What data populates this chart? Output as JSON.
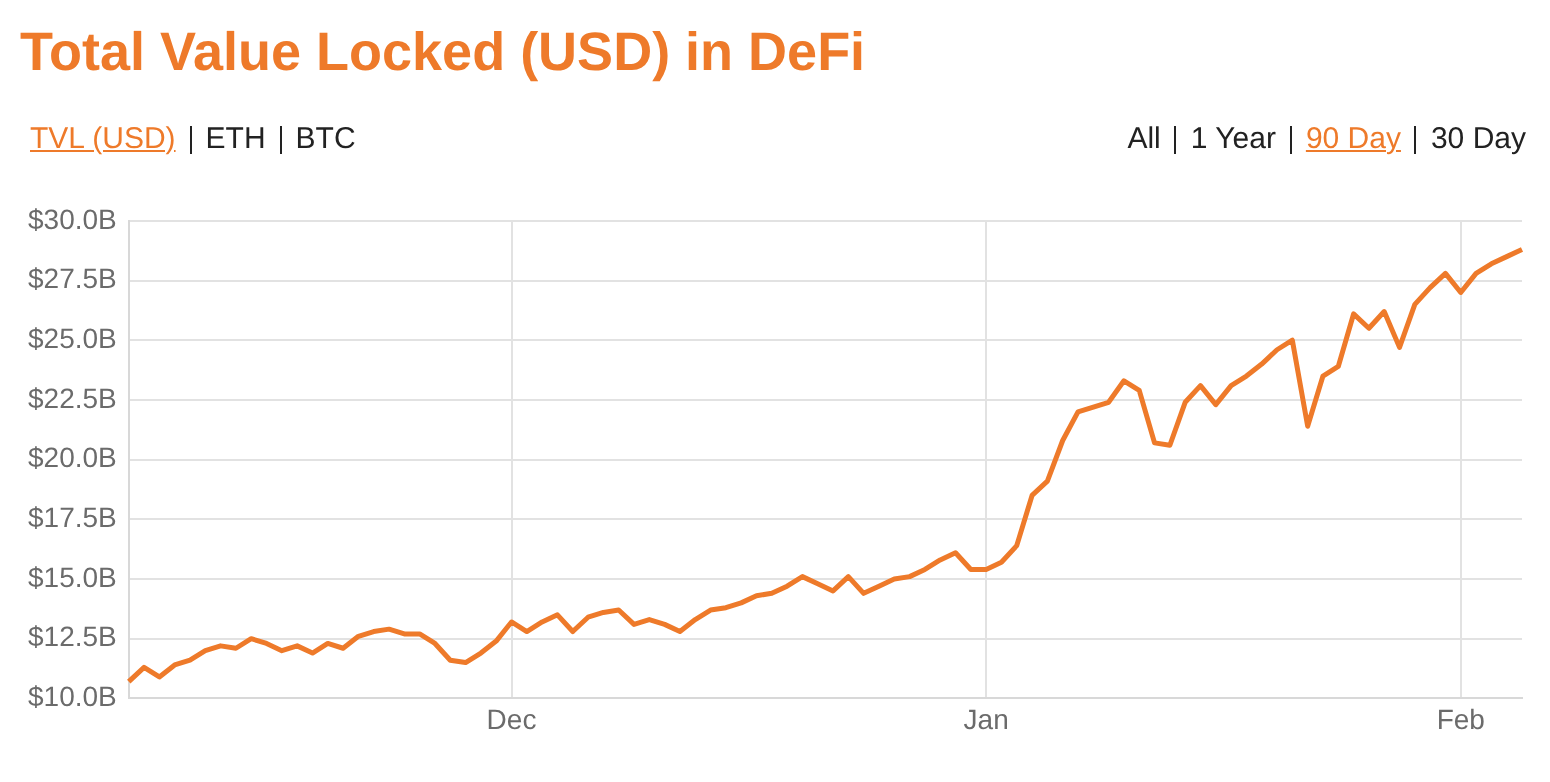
{
  "chart_data": {
    "type": "line",
    "title": "Total Value Locked (USD) in DeFi",
    "annotations": [
      "TVL (USD)",
      "ETH",
      "BTC",
      "All",
      "1 Year",
      "90 Day",
      "30 Day"
    ],
    "categories": [
      null,
      null,
      null,
      null,
      null,
      null,
      null,
      null,
      null,
      null,
      null,
      null,
      null,
      null,
      null,
      null,
      null,
      null,
      null,
      null,
      null,
      null,
      null,
      null,
      null,
      "Dec",
      null,
      null,
      null,
      null,
      null,
      null,
      null,
      null,
      null,
      null,
      null,
      null,
      null,
      null,
      null,
      null,
      null,
      null,
      null,
      null,
      null,
      null,
      null,
      null,
      null,
      null,
      null,
      null,
      null,
      null,
      "Jan",
      null,
      null,
      null,
      null,
      null,
      null,
      null,
      null,
      null,
      null,
      null,
      null,
      null,
      null,
      null,
      null,
      null,
      null,
      null,
      null,
      null,
      null,
      null,
      null,
      null,
      null,
      null,
      null,
      null,
      null,
      "Feb",
      null,
      null,
      null,
      null
    ],
    "series": [
      {
        "color": "#ee7a2a",
        "values": [
          10.7,
          11.3,
          10.9,
          11.4,
          11.6,
          12.0,
          12.2,
          12.1,
          12.5,
          12.3,
          12.0,
          12.2,
          11.9,
          12.3,
          12.1,
          12.6,
          12.8,
          12.9,
          12.7,
          12.7,
          12.3,
          11.6,
          11.5,
          11.9,
          12.4,
          13.2,
          12.8,
          13.2,
          13.5,
          12.8,
          13.4,
          13.6,
          13.7,
          13.1,
          13.3,
          13.1,
          12.8,
          13.3,
          13.7,
          13.8,
          14.0,
          14.3,
          14.4,
          14.7,
          15.1,
          14.8,
          14.5,
          15.1,
          14.4,
          14.7,
          15.0,
          15.1,
          15.4,
          15.8,
          16.1,
          15.4,
          15.4,
          15.7,
          16.4,
          18.5,
          19.1,
          20.8,
          22.0,
          22.2,
          22.4,
          23.3,
          22.9,
          20.7,
          20.6,
          22.4,
          23.1,
          22.3,
          23.1,
          23.5,
          24.0,
          24.6,
          25.0,
          21.4,
          23.5,
          23.9,
          26.1,
          25.5,
          26.2,
          24.7,
          26.5,
          27.2,
          27.8,
          27.0,
          27.8,
          28.2,
          28.5,
          28.8
        ]
      }
    ],
    "ylim": [
      10,
      30
    ],
    "yticks": [
      {
        "value": 10,
        "label": "$10.0B"
      },
      {
        "value": 12.5,
        "label": "$12.5B"
      },
      {
        "value": 15,
        "label": "$15.0B"
      },
      {
        "value": 17.5,
        "label": "$17.5B"
      },
      {
        "value": 20,
        "label": "$20.0B"
      },
      {
        "value": 22.5,
        "label": "$22.5B"
      },
      {
        "value": 25,
        "label": "$25.0B"
      },
      {
        "value": 27.5,
        "label": "$27.5B"
      },
      {
        "value": 30,
        "label": "$30.0B"
      }
    ],
    "grid": true,
    "legend": false,
    "marker": "none",
    "line_style": "solid"
  }
}
